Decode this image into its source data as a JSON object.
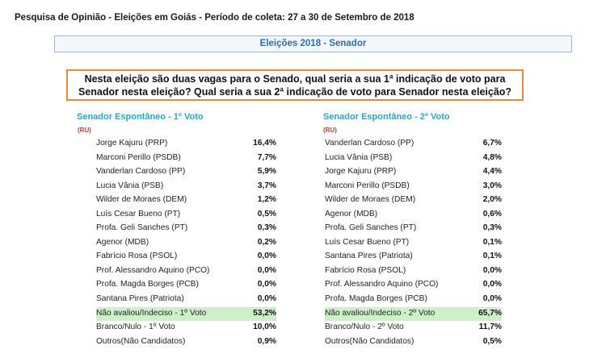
{
  "header": {
    "title": "Pesquisa de Opinião - Eleições em Goiás - Período de coleta: 27 a 30 de Setembro de 2018"
  },
  "section": {
    "title": "Eleições 2018 - Senador"
  },
  "question": {
    "line1": "Nesta eleição são duas vagas para o Senado, qual seria a sua 1ª indicação de voto para",
    "line2": "Senador nesta eleição? Qual seria a sua 2ª indicação de voto para Senador nesta eleição?"
  },
  "left": {
    "title": "Senador Espontâneo -  1º Voto",
    "tag": "(RU)",
    "rows": [
      {
        "name": "Jorge Kajuru (PRP)",
        "pct": "16,4%"
      },
      {
        "name": "Marconi Perillo (PSDB)",
        "pct": "7,7%"
      },
      {
        "name": "Vanderlan Cardoso (PP)",
        "pct": "5,9%"
      },
      {
        "name": "Lucia Vânia (PSB)",
        "pct": "3,7%"
      },
      {
        "name": "Wilder de Moraes (DEM)",
        "pct": "1,2%"
      },
      {
        "name": "Luís Cesar Bueno (PT)",
        "pct": "0,5%"
      },
      {
        "name": "Profa. Geli Sanches (PT)",
        "pct": "0,3%"
      },
      {
        "name": "Agenor (MDB)",
        "pct": "0,2%"
      },
      {
        "name": "Fabrício Rosa (PSOL)",
        "pct": "0,0%"
      },
      {
        "name": "Prof. Alessandro Aquino (PCO)",
        "pct": "0,0%"
      },
      {
        "name": "Profa. Magda Borges (PCB)",
        "pct": "0,0%"
      },
      {
        "name": "Santana Pires (Patriota)",
        "pct": "0,0%"
      },
      {
        "name": "Não avaliou/Indeciso - 1º Voto",
        "pct": "53,2%",
        "highlight": true
      },
      {
        "name": "Branco/Nulo - 1º Voto",
        "pct": "10,0%"
      },
      {
        "name": "Outros(Não Candidatos)",
        "pct": "0,9%"
      }
    ]
  },
  "right": {
    "title": "Senador Espontâneo -  2º Voto",
    "tag": "(RU)",
    "rows": [
      {
        "name": "Vanderlan Cardoso (PP)",
        "pct": "6,7%"
      },
      {
        "name": "Lucia Vânia (PSB)",
        "pct": "4,8%"
      },
      {
        "name": "Jorge Kajuru (PRP)",
        "pct": "4,4%"
      },
      {
        "name": "Marconi Perillo (PSDB)",
        "pct": "3,0%"
      },
      {
        "name": "Wilder de Moraes (DEM)",
        "pct": "2,0%"
      },
      {
        "name": "Agenor (MDB)",
        "pct": "0,6%"
      },
      {
        "name": "Profa. Geli Sanches (PT)",
        "pct": "0,3%"
      },
      {
        "name": "Luís Cesar Bueno (PT)",
        "pct": "0,1%"
      },
      {
        "name": "Santana Pires (Patriota)",
        "pct": "0,1%"
      },
      {
        "name": "Fabrício Rosa (PSOL)",
        "pct": "0,0%"
      },
      {
        "name": "Prof. Alessandro Aquino (PCO)",
        "pct": "0,0%"
      },
      {
        "name": "Profa. Magda Borges (PCB)",
        "pct": "0,0%"
      },
      {
        "name": "Não avaliou/Indeciso - 2º Voto",
        "pct": "65,7%",
        "highlight": true
      },
      {
        "name": "Branco/Nulo - 2º Voto",
        "pct": "11,7%"
      },
      {
        "name": "Outros(Não Candidatos)",
        "pct": "0,5%"
      }
    ]
  },
  "colors": {
    "section_text": "#2a6db0",
    "column_title": "#2aa7c2",
    "ru_tag": "#c0392b",
    "question_border": "#e88a3c",
    "highlight_row": "#cdf0c8"
  }
}
